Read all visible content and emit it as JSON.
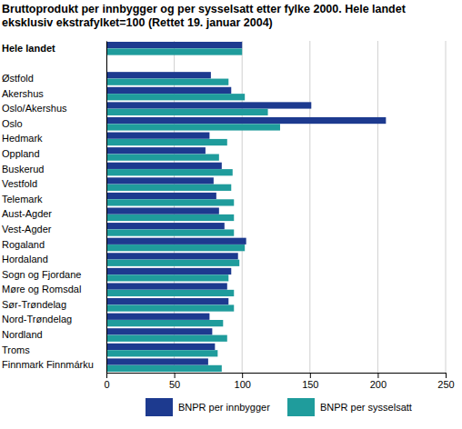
{
  "chart_data": {
    "type": "bar",
    "orientation": "horizontal",
    "title": "Bruttoprodukt per innbygger og per sysselsatt etter fylke 2000. Hele landet eksklusiv ekstrafylket=100 (Rettet 19. januar 2004)",
    "categories": [
      "Hele landet",
      null,
      "Østfold",
      "Akershus",
      "Oslo/Akershus",
      "Oslo",
      "Hedmark",
      "Oppland",
      "Buskerud",
      "Vestfold",
      "Telemark",
      "Aust-Agder",
      "Vest-Agder",
      "Rogaland",
      "Hordaland",
      "Sogn og Fjordane",
      "Møre og Romsdal",
      "Sør-Trøndelag",
      "Nord-Trøndelag",
      "Nordland",
      "Troms",
      "Finnmark Finnmárku"
    ],
    "series": [
      {
        "name": "BNPR per innbygger",
        "color": "#1d3a8f",
        "values": [
          100,
          null,
          77,
          92,
          151,
          206,
          76,
          73,
          85,
          79,
          81,
          83,
          87,
          103,
          97,
          92,
          89,
          90,
          76,
          78,
          80,
          75
        ]
      },
      {
        "name": "BNPR per sysselsatt",
        "color": "#1f9c9c",
        "values": [
          100,
          null,
          90,
          102,
          119,
          128,
          89,
          83,
          93,
          92,
          94,
          94,
          94,
          102,
          98,
          90,
          94,
          94,
          86,
          89,
          82,
          85
        ]
      }
    ],
    "xlim": [
      0,
      250
    ],
    "xticks": [
      0,
      50,
      100,
      150,
      200,
      250
    ],
    "grid": true,
    "legend": "bottom"
  }
}
